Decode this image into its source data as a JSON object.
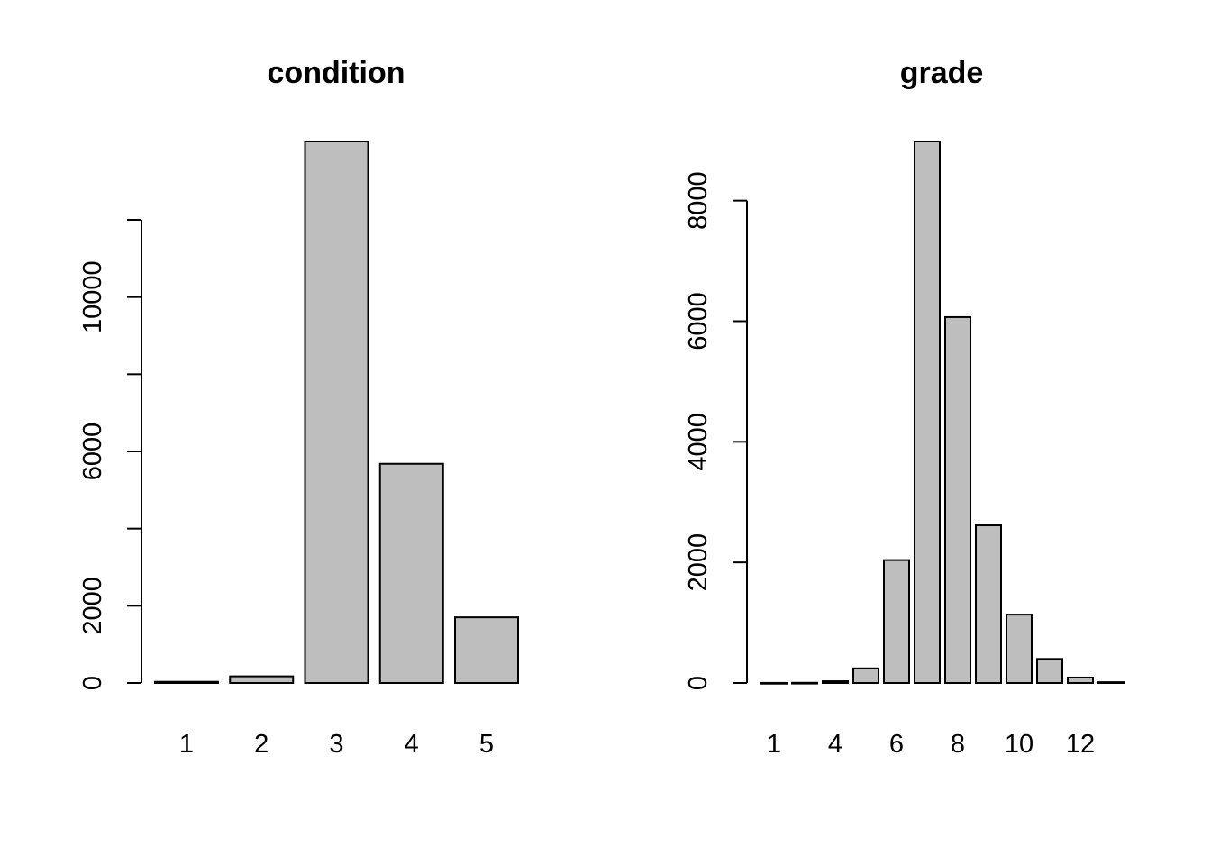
{
  "colors": {
    "bar_fill": "#bebebe",
    "bar_stroke": "#000000",
    "axis": "#000000",
    "background": "#ffffff"
  },
  "chart_data": [
    {
      "type": "bar",
      "title": "condition",
      "xlabel": "",
      "ylabel": "",
      "categories": [
        "1",
        "2",
        "3",
        "4",
        "5"
      ],
      "category_labels_shown": [
        "1",
        "2",
        "3",
        "4",
        "5"
      ],
      "values": [
        30,
        172,
        14031,
        5679,
        1701
      ],
      "ylim": [
        0,
        14031
      ],
      "y_ticks": [
        0,
        2000,
        4000,
        6000,
        8000,
        10000,
        12000
      ],
      "y_tick_labels": [
        "0",
        "2000",
        "",
        "6000",
        "",
        "10000",
        ""
      ],
      "grid": false,
      "legend": "none"
    },
    {
      "type": "bar",
      "title": "grade",
      "xlabel": "",
      "ylabel": "",
      "categories": [
        "1",
        "3",
        "4",
        "5",
        "6",
        "7",
        "8",
        "9",
        "10",
        "11",
        "12",
        "13"
      ],
      "category_labels_shown": [
        "1",
        "",
        "4",
        "",
        "6",
        "",
        "8",
        "",
        "10",
        "",
        "12",
        ""
      ],
      "values": [
        1,
        3,
        29,
        242,
        2038,
        8981,
        6068,
        2615,
        1134,
        399,
        90,
        13
      ],
      "ylim": [
        0,
        8981
      ],
      "y_ticks": [
        0,
        2000,
        4000,
        6000,
        8000
      ],
      "y_tick_labels": [
        "0",
        "2000",
        "4000",
        "6000",
        "8000"
      ],
      "grid": false,
      "legend": "none"
    }
  ]
}
